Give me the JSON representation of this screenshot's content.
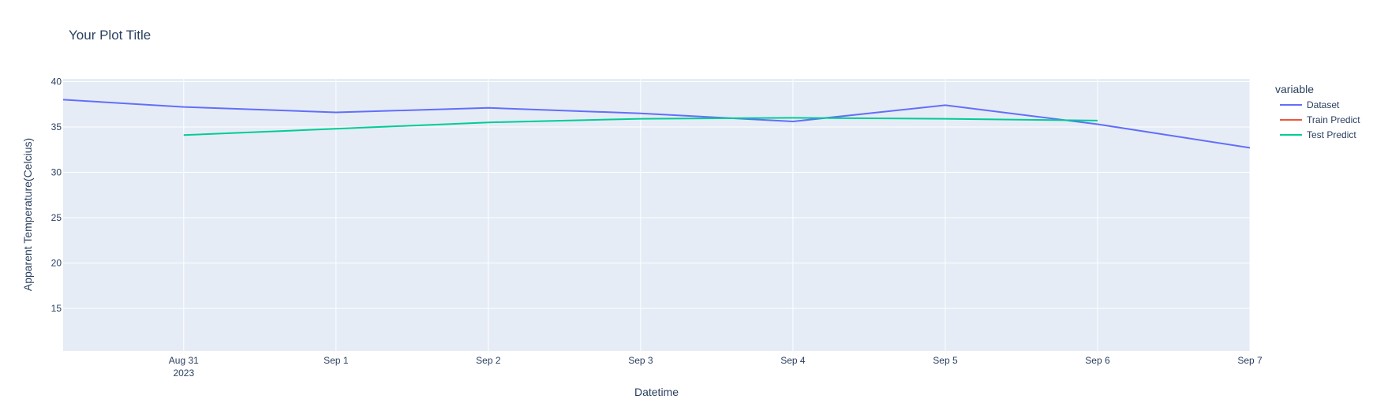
{
  "chart_data": {
    "type": "line",
    "title": "Your Plot Title",
    "xlabel": "Datetime",
    "ylabel": "Apparent Temperature(Celcius)",
    "x_tick_labels": [
      "Aug 31",
      "Sep 1",
      "Sep 2",
      "Sep 3",
      "Sep 4",
      "Sep 5",
      "Sep 6",
      "Sep 7"
    ],
    "x_tick_year": "2023",
    "x_tick_dates": [
      "2023-08-31",
      "2023-09-01",
      "2023-09-02",
      "2023-09-03",
      "2023-09-04",
      "2023-09-05",
      "2023-09-06",
      "2023-09-07"
    ],
    "xlim": [
      "2023-08-30 05:00",
      "2023-09-07 00:00"
    ],
    "y_ticks": [
      15,
      20,
      25,
      30,
      35,
      40
    ],
    "ylim": [
      10.3,
      40.3
    ],
    "grid": true,
    "legend": {
      "title": "variable",
      "placement": "right"
    },
    "series": [
      {
        "name": "Dataset",
        "color": "#636efa",
        "x": [
          "2023-08-30 05:00",
          "2023-08-31",
          "2023-09-01",
          "2023-09-02",
          "2023-09-03",
          "2023-09-04",
          "2023-09-05",
          "2023-09-06",
          "2023-09-07"
        ],
        "values": [
          38.0,
          37.2,
          36.6,
          37.1,
          36.5,
          35.6,
          37.4,
          35.3,
          32.7
        ]
      },
      {
        "name": "Train Predict",
        "color": "#EF553B",
        "x": [],
        "values": []
      },
      {
        "name": "Test Predict",
        "color": "#00cc96",
        "x": [
          "2023-08-31",
          "2023-09-01",
          "2023-09-02",
          "2023-09-03",
          "2023-09-04",
          "2023-09-05",
          "2023-09-06"
        ],
        "values": [
          34.1,
          34.8,
          35.5,
          35.9,
          36.0,
          35.9,
          35.7
        ]
      }
    ]
  }
}
